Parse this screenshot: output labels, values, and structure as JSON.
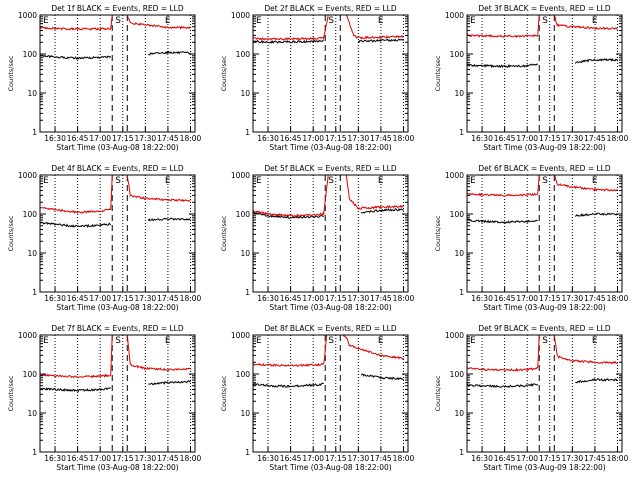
{
  "colors": {
    "events": "#000000",
    "lld": "#e00000",
    "axes": "#000000",
    "background": "#ffffff"
  },
  "chart_data": [
    {
      "type": "line",
      "panel": "1f",
      "title": "Det 1f BLACK = Events, RED = LLD",
      "xlabel": "Start Time (03-Aug-08 18:22:00)",
      "ylabel": "Counts/sec",
      "xticks": [
        "16:30",
        "16:45",
        "17:00",
        "17:15",
        "17:30",
        "17:45",
        "18:00"
      ],
      "yticks": [
        "1",
        "10",
        "100",
        "1000"
      ],
      "yscale": "log",
      "ylim": [
        1,
        1000
      ],
      "markers": [
        "E",
        "S",
        "E"
      ],
      "series": [
        {
          "color": "#000000",
          "segments": [
            {
              "x": [
                "16:20",
                "16:30",
                "16:45",
                "17:00",
                "17:07"
              ],
              "y": [
                90,
                84,
                78,
                82,
                85
              ]
            },
            {
              "x": [
                "17:32",
                "17:45",
                "18:00"
              ],
              "y": [
                100,
                110,
                106
              ]
            }
          ]
        },
        {
          "color": "#e00000",
          "segments": [
            {
              "x": [
                "16:20",
                "16:30",
                "16:45",
                "17:00",
                "17:07",
                "17:08",
                "17:17",
                "17:18",
                "17:20",
                "17:30",
                "17:45",
                "18:00"
              ],
              "y": [
                480,
                450,
                440,
                440,
                445,
                1000,
                1000,
                1000,
                620,
                560,
                480,
                470
              ]
            }
          ]
        }
      ]
    },
    {
      "type": "line",
      "panel": "2f",
      "title": "Det 2f BLACK = Events, RED = LLD",
      "xlabel": "Start Time (03-Aug-08 18:22:00)",
      "ylabel": "Counts/sec",
      "xticks": [
        "16:30",
        "16:45",
        "17:00",
        "17:15",
        "17:30",
        "17:45",
        "18:00"
      ],
      "yticks": [
        "1",
        "10",
        "100",
        "1000"
      ],
      "yscale": "log",
      "ylim": [
        1,
        1000
      ],
      "markers": [
        "E",
        "S",
        "E"
      ],
      "series": [
        {
          "color": "#000000",
          "segments": [
            {
              "x": [
                "16:20",
                "16:30",
                "16:45",
                "17:00",
                "17:07"
              ],
              "y": [
                210,
                200,
                205,
                210,
                215
              ]
            },
            {
              "x": [
                "17:30",
                "17:45",
                "18:00"
              ],
              "y": [
                210,
                220,
                230
              ]
            }
          ]
        },
        {
          "color": "#e00000",
          "segments": [
            {
              "x": [
                "16:20",
                "16:30",
                "16:45",
                "17:00",
                "17:07",
                "17:10",
                "17:22",
                "17:27",
                "17:30",
                "17:45",
                "18:00"
              ],
              "y": [
                250,
                240,
                245,
                250,
                260,
                1000,
                1000,
                300,
                260,
                270,
                280
              ]
            }
          ]
        }
      ]
    },
    {
      "type": "line",
      "panel": "3f",
      "title": "Det 3f BLACK = Events, RED = LLD",
      "xlabel": "Start Time (03-Aug-09 18:22:00)",
      "ylabel": "Counts/sec",
      "xticks": [
        "16:30",
        "16:45",
        "17:00",
        "17:15",
        "17:30",
        "17:45",
        "18:00"
      ],
      "yticks": [
        "1",
        "10",
        "100",
        "1000"
      ],
      "yscale": "log",
      "ylim": [
        1,
        1000
      ],
      "markers": [
        "E",
        "S",
        "E"
      ],
      "series": [
        {
          "color": "#000000",
          "segments": [
            {
              "x": [
                "16:20",
                "16:30",
                "16:45",
                "17:00",
                "17:07"
              ],
              "y": [
                52,
                50,
                48,
                50,
                55
              ]
            },
            {
              "x": [
                "17:32",
                "17:45",
                "18:00"
              ],
              "y": [
                60,
                72,
                70
              ]
            }
          ]
        },
        {
          "color": "#e00000",
          "segments": [
            {
              "x": [
                "16:20",
                "16:30",
                "16:45",
                "17:00",
                "17:07",
                "17:08",
                "17:17",
                "17:18",
                "17:20",
                "17:30",
                "17:45",
                "18:00"
              ],
              "y": [
                300,
                290,
                285,
                290,
                300,
                1000,
                1000,
                1000,
                550,
                500,
                460,
                450
              ]
            }
          ]
        }
      ]
    },
    {
      "type": "line",
      "panel": "4f",
      "title": "Det 4f BLACK = Events, RED = LLD",
      "xlabel": "Start Time (03-Aug-08 18:22:00)",
      "ylabel": "Counts/sec",
      "xticks": [
        "16:30",
        "16:45",
        "17:00",
        "17:15",
        "17:30",
        "17:45",
        "18:00"
      ],
      "yticks": [
        "1",
        "10",
        "100",
        "1000"
      ],
      "yscale": "log",
      "ylim": [
        1,
        1000
      ],
      "markers": [
        "E",
        "S",
        "E"
      ],
      "series": [
        {
          "color": "#000000",
          "segments": [
            {
              "x": [
                "16:20",
                "16:30",
                "16:45",
                "17:00",
                "17:07"
              ],
              "y": [
                60,
                55,
                48,
                52,
                55
              ]
            },
            {
              "x": [
                "17:32",
                "17:45",
                "18:00"
              ],
              "y": [
                70,
                75,
                72
              ]
            }
          ]
        },
        {
          "color": "#e00000",
          "segments": [
            {
              "x": [
                "16:20",
                "16:30",
                "16:45",
                "17:00",
                "17:07",
                "17:08",
                "17:17",
                "17:18",
                "17:20",
                "17:30",
                "17:45",
                "18:00"
              ],
              "y": [
                150,
                130,
                110,
                120,
                130,
                1000,
                1000,
                1000,
                300,
                250,
                230,
                220
              ]
            }
          ]
        }
      ]
    },
    {
      "type": "line",
      "panel": "5f",
      "title": "Det 5f BLACK = Events, RED = LLD",
      "xlabel": "Start Time (03-Aug-08 18:22:00)",
      "ylabel": "Counts/sec",
      "xticks": [
        "16:30",
        "16:45",
        "17:00",
        "17:15",
        "17:30",
        "17:45",
        "18:00"
      ],
      "yticks": [
        "1",
        "10",
        "100",
        "1000"
      ],
      "yscale": "log",
      "ylim": [
        1,
        1000
      ],
      "markers": [
        "E",
        "S",
        "E"
      ],
      "series": [
        {
          "color": "#000000",
          "segments": [
            {
              "x": [
                "16:20",
                "16:30",
                "16:45",
                "17:00",
                "17:07"
              ],
              "y": [
                110,
                90,
                82,
                85,
                90
              ]
            },
            {
              "x": [
                "17:32",
                "17:45",
                "18:00"
              ],
              "y": [
                110,
                125,
                130
              ]
            }
          ]
        },
        {
          "color": "#e00000",
          "segments": [
            {
              "x": [
                "16:20",
                "16:30",
                "16:45",
                "17:00",
                "17:07",
                "17:10",
                "17:22",
                "17:24",
                "17:30",
                "17:45",
                "18:00"
              ],
              "y": [
                120,
                100,
                90,
                95,
                100,
                1000,
                1000,
                250,
                140,
                150,
                155
              ]
            }
          ]
        }
      ]
    },
    {
      "type": "line",
      "panel": "6f",
      "title": "Det 6f BLACK = Events, RED = LLD",
      "xlabel": "Start Time (03-Aug-09 18:22:00)",
      "ylabel": "Counts/sec",
      "xticks": [
        "16:30",
        "16:45",
        "17:00",
        "17:15",
        "17:30",
        "17:45",
        "18:00"
      ],
      "yticks": [
        "1",
        "10",
        "100",
        "1000"
      ],
      "yscale": "log",
      "ylim": [
        1,
        1000
      ],
      "markers": [
        "E",
        "S",
        "E"
      ],
      "series": [
        {
          "color": "#000000",
          "segments": [
            {
              "x": [
                "16:20",
                "16:30",
                "16:45",
                "17:00",
                "17:07"
              ],
              "y": [
                70,
                65,
                62,
                65,
                70
              ]
            },
            {
              "x": [
                "17:32",
                "17:45",
                "18:00"
              ],
              "y": [
                90,
                100,
                98
              ]
            }
          ]
        },
        {
          "color": "#e00000",
          "segments": [
            {
              "x": [
                "16:20",
                "16:30",
                "16:45",
                "17:00",
                "17:07",
                "17:08",
                "17:17",
                "17:18",
                "17:20",
                "17:30",
                "17:45",
                "18:00"
              ],
              "y": [
                330,
                310,
                300,
                310,
                320,
                1000,
                1000,
                1000,
                580,
                500,
                420,
                410
              ]
            }
          ]
        }
      ]
    },
    {
      "type": "line",
      "panel": "7f",
      "title": "Det 7f BLACK = Events, RED = LLD",
      "xlabel": "Start Time (03-Aug-08 18:22:00)",
      "ylabel": "Counts/sec",
      "xticks": [
        "16:30",
        "16:45",
        "17:00",
        "17:15",
        "17:30",
        "17:45",
        "18:00"
      ],
      "yticks": [
        "1",
        "10",
        "100",
        "1000"
      ],
      "yscale": "log",
      "ylim": [
        1,
        1000
      ],
      "markers": [
        "E",
        "S",
        "E"
      ],
      "series": [
        {
          "color": "#000000",
          "segments": [
            {
              "x": [
                "16:20",
                "16:30",
                "16:45",
                "17:00",
                "17:07"
              ],
              "y": [
                42,
                40,
                38,
                40,
                42
              ]
            },
            {
              "x": [
                "17:32",
                "17:45",
                "18:00"
              ],
              "y": [
                55,
                60,
                65
              ]
            }
          ]
        },
        {
          "color": "#e00000",
          "segments": [
            {
              "x": [
                "16:20",
                "16:30",
                "16:45",
                "17:00",
                "17:07",
                "17:08",
                "17:17",
                "17:18",
                "17:20",
                "17:30",
                "17:45",
                "18:00"
              ],
              "y": [
                95,
                90,
                85,
                88,
                92,
                1000,
                1000,
                1000,
                170,
                140,
                130,
                135
              ]
            }
          ]
        }
      ]
    },
    {
      "type": "line",
      "panel": "8f",
      "title": "Det 8f BLACK = Events, RED = LLD",
      "xlabel": "Start Time (03-Aug-08 18:22:00)",
      "ylabel": "Counts/sec",
      "xticks": [
        "16:30",
        "16:45",
        "17:00",
        "17:15",
        "17:30",
        "17:45",
        "18:00"
      ],
      "yticks": [
        "1",
        "10",
        "100",
        "1000"
      ],
      "yscale": "log",
      "ylim": [
        1,
        1000
      ],
      "markers": [
        "E",
        "S",
        "E"
      ],
      "series": [
        {
          "color": "#000000",
          "segments": [
            {
              "x": [
                "16:20",
                "16:30",
                "16:45",
                "17:00",
                "17:07"
              ],
              "y": [
                55,
                50,
                48,
                52,
                55
              ]
            },
            {
              "x": [
                "17:32",
                "17:45",
                "18:00"
              ],
              "y": [
                95,
                80,
                75
              ]
            }
          ]
        },
        {
          "color": "#e00000",
          "segments": [
            {
              "x": [
                "16:20",
                "16:30",
                "16:45",
                "17:00",
                "17:07",
                "17:09",
                "17:20",
                "17:22",
                "17:24",
                "17:30",
                "17:45",
                "18:00"
              ],
              "y": [
                180,
                170,
                165,
                170,
                175,
                1000,
                1000,
                900,
                550,
                450,
                300,
                250
              ]
            }
          ]
        }
      ]
    },
    {
      "type": "line",
      "panel": "9f",
      "title": "Det 9f BLACK = Events, RED = LLD",
      "xlabel": "Start Time (03-Aug-09 18:22:00)",
      "ylabel": "Counts/sec",
      "xticks": [
        "16:30",
        "16:45",
        "17:00",
        "17:15",
        "17:30",
        "17:45",
        "18:00"
      ],
      "yticks": [
        "1",
        "10",
        "100",
        "1000"
      ],
      "yscale": "log",
      "ylim": [
        1,
        1000
      ],
      "markers": [
        "E",
        "S",
        "E"
      ],
      "series": [
        {
          "color": "#000000",
          "segments": [
            {
              "x": [
                "16:20",
                "16:30",
                "16:45",
                "17:00",
                "17:07"
              ],
              "y": [
                52,
                50,
                48,
                50,
                55
              ]
            },
            {
              "x": [
                "17:32",
                "17:45",
                "18:00"
              ],
              "y": [
                62,
                72,
                70
              ]
            }
          ]
        },
        {
          "color": "#e00000",
          "segments": [
            {
              "x": [
                "16:20",
                "16:30",
                "16:45",
                "17:00",
                "17:07",
                "17:08",
                "17:17",
                "17:18",
                "17:20",
                "17:30",
                "17:45",
                "18:00"
              ],
              "y": [
                140,
                130,
                125,
                130,
                140,
                1000,
                1000,
                1000,
                280,
                220,
                200,
                195
              ]
            }
          ]
        }
      ]
    }
  ]
}
